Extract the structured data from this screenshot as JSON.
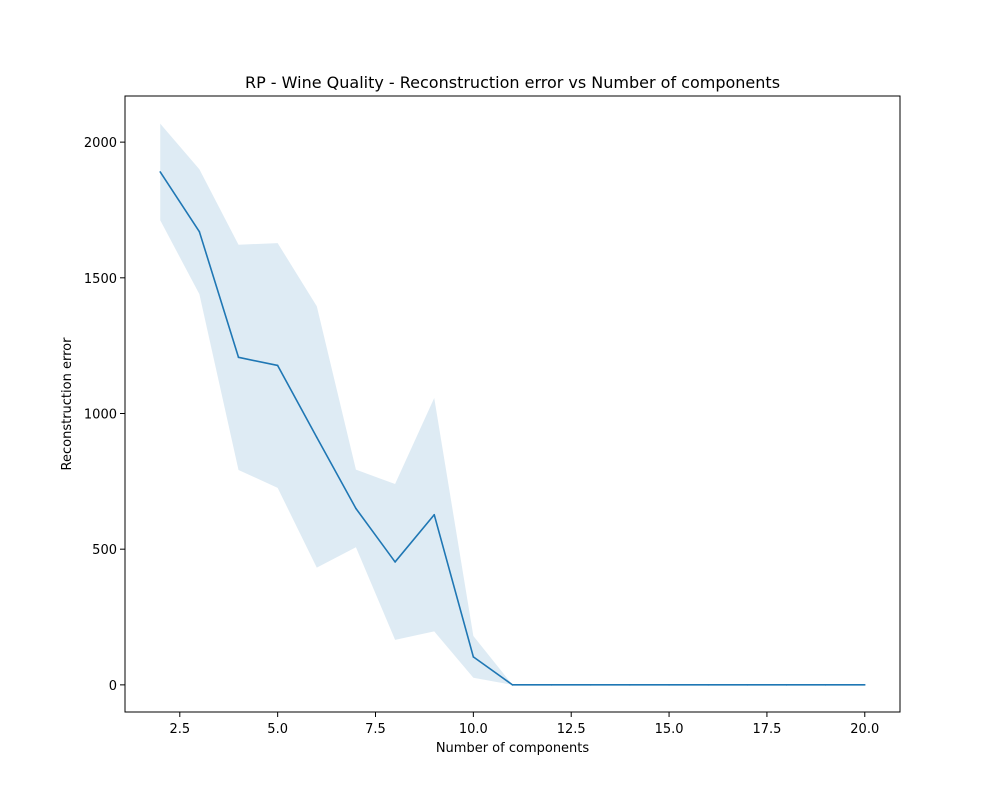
{
  "chart_data": {
    "type": "line",
    "title": "RP - Wine Quality - Reconstruction error vs Number of components",
    "xlabel": "Number of components",
    "ylabel": "Reconstruction error",
    "xlim": [
      1.1,
      20.9
    ],
    "ylim": [
      -100,
      2170
    ],
    "xticks": [
      2.5,
      5.0,
      7.5,
      10.0,
      12.5,
      15.0,
      17.5,
      20.0
    ],
    "xtick_labels": [
      "2.5",
      "5.0",
      "7.5",
      "10.0",
      "12.5",
      "15.0",
      "17.5",
      "20.0"
    ],
    "yticks": [
      0,
      500,
      1000,
      1500,
      2000
    ],
    "ytick_labels": [
      "0",
      "500",
      "1000",
      "1500",
      "2000"
    ],
    "grid": false,
    "series": [
      {
        "x": [
          2,
          3,
          4,
          5,
          6,
          7,
          8,
          9,
          10,
          11,
          12,
          13,
          14,
          15,
          16,
          17,
          18,
          19,
          20
        ],
        "values": [
          1890,
          1670,
          1207,
          1177,
          912,
          650,
          453,
          627,
          103,
          0,
          0,
          0,
          0,
          0,
          0,
          0,
          0,
          0,
          0
        ],
        "upper": [
          2068,
          1900,
          1622,
          1628,
          1395,
          793,
          740,
          1057,
          180,
          0,
          0,
          0,
          0,
          0,
          0,
          0,
          0,
          0,
          0
        ],
        "lower": [
          1712,
          1440,
          792,
          726,
          432,
          507,
          166,
          197,
          26,
          0,
          0,
          0,
          0,
          0,
          0,
          0,
          0,
          0,
          0
        ],
        "color": "#1f77b4",
        "band_color": "#1f77b4"
      }
    ]
  }
}
